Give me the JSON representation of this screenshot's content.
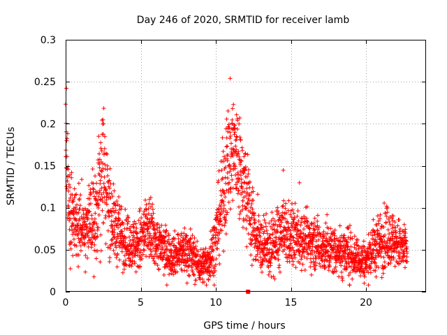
{
  "chart_data": {
    "type": "scatter",
    "title": "Day 246 of 2020, SRMTID for receiver lamb",
    "xlabel": "GPS time / hours",
    "ylabel": "SRMTID / TECUs",
    "xlim": [
      0,
      24
    ],
    "ylim": [
      0,
      0.3
    ],
    "xticks": [
      "0",
      "5",
      "10",
      "15",
      "20"
    ],
    "xtick_values": [
      0,
      5,
      10,
      15,
      20
    ],
    "yticks": [
      "0",
      "0.05",
      "0.1",
      "0.15",
      "0.2",
      "0.25",
      "0.3"
    ],
    "ytick_values": [
      0,
      0.05,
      0.1,
      0.15,
      0.2,
      0.25,
      0.3
    ],
    "grid": true,
    "marker": "plus",
    "color": "#ff0000",
    "special_point": {
      "x": 12.15,
      "y": 0.0,
      "marker": "square"
    },
    "series": [
      {
        "name": "SRMTID",
        "x_range": [
          0,
          22.75
        ],
        "x_step": 0.0083,
        "envelope_hours": [
          0,
          0.25,
          0.5,
          1.0,
          1.5,
          2.0,
          2.4,
          2.6,
          2.9,
          3.2,
          3.6,
          4.0,
          4.5,
          5.0,
          5.5,
          6.0,
          6.5,
          7.0,
          7.5,
          8.0,
          8.5,
          9.0,
          9.5,
          10.0,
          10.5,
          10.8,
          11.1,
          11.4,
          11.8,
          12.2,
          12.6,
          13.0,
          13.5,
          14.0,
          14.5,
          15.0,
          15.5,
          16.0,
          16.5,
          17.0,
          17.5,
          18.0,
          18.5,
          19.0,
          19.5,
          20.0,
          20.5,
          21.0,
          21.5,
          22.0,
          22.5,
          22.75
        ],
        "envelope_mean": [
          0.17,
          0.09,
          0.075,
          0.08,
          0.075,
          0.09,
          0.16,
          0.14,
          0.1,
          0.08,
          0.07,
          0.06,
          0.055,
          0.06,
          0.075,
          0.06,
          0.05,
          0.045,
          0.045,
          0.05,
          0.04,
          0.03,
          0.035,
          0.06,
          0.12,
          0.15,
          0.17,
          0.16,
          0.13,
          0.1,
          0.07,
          0.055,
          0.05,
          0.06,
          0.07,
          0.065,
          0.065,
          0.06,
          0.06,
          0.055,
          0.05,
          0.05,
          0.045,
          0.045,
          0.04,
          0.035,
          0.05,
          0.06,
          0.065,
          0.06,
          0.05,
          0.05
        ],
        "envelope_spread": [
          0.04,
          0.03,
          0.02,
          0.02,
          0.02,
          0.03,
          0.05,
          0.04,
          0.025,
          0.02,
          0.02,
          0.015,
          0.015,
          0.02,
          0.02,
          0.015,
          0.015,
          0.012,
          0.012,
          0.015,
          0.012,
          0.01,
          0.012,
          0.02,
          0.03,
          0.035,
          0.04,
          0.035,
          0.03,
          0.025,
          0.02,
          0.015,
          0.015,
          0.02,
          0.02,
          0.018,
          0.018,
          0.015,
          0.015,
          0.015,
          0.015,
          0.015,
          0.015,
          0.015,
          0.012,
          0.012,
          0.015,
          0.018,
          0.018,
          0.015,
          0.015,
          0.015
        ]
      }
    ]
  }
}
